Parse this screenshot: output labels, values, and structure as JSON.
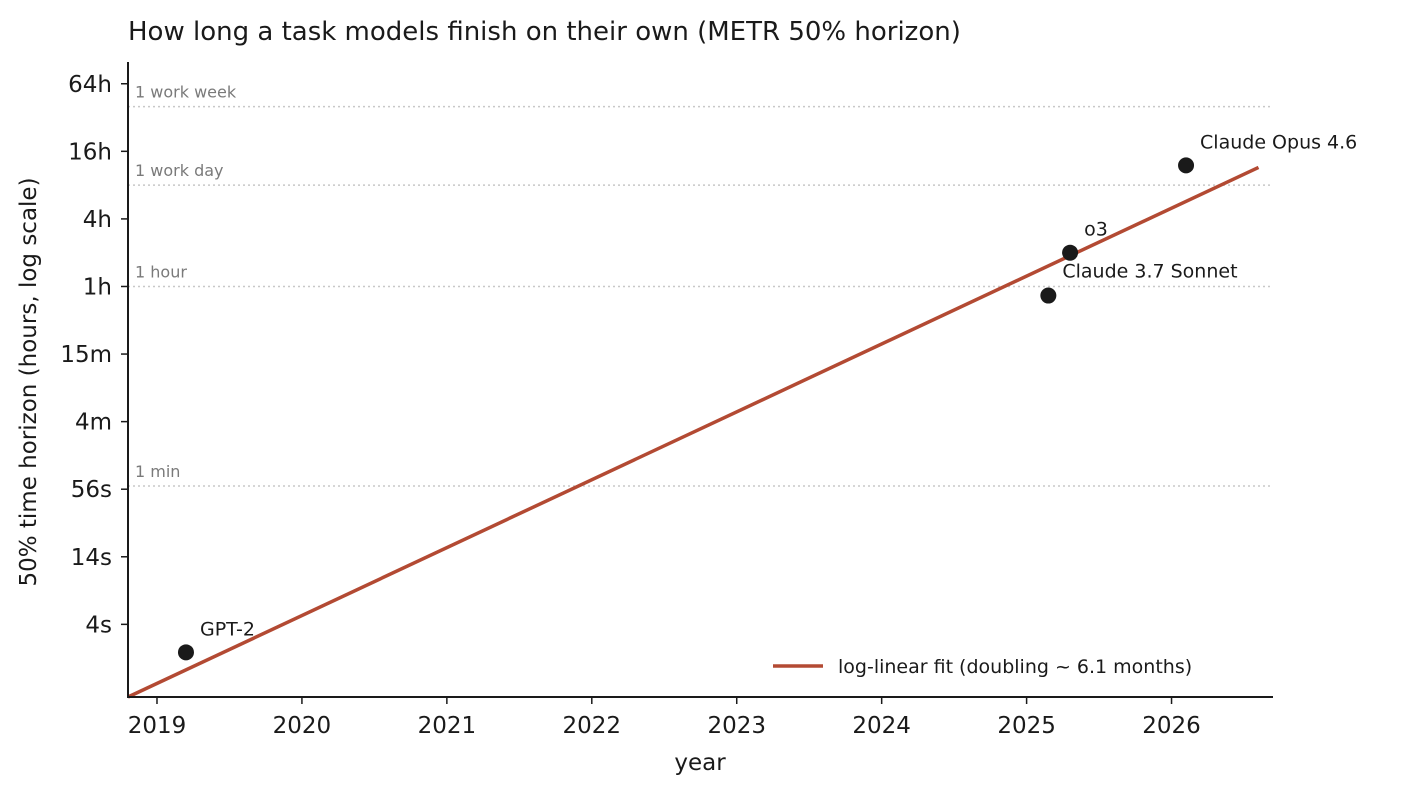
{
  "chart_data": {
    "type": "scatter",
    "title": "How long a task models finish on their own (METR 50% horizon)",
    "xlabel": "year",
    "ylabel": "50% time horizon (hours, log scale)",
    "y_scale": "log2",
    "xlim": [
      2018.8,
      2026.7
    ],
    "ylim_hours": [
      0.00022,
      100
    ],
    "x_ticks": [
      {
        "value": 2019,
        "label": "2019"
      },
      {
        "value": 2020,
        "label": "2020"
      },
      {
        "value": 2021,
        "label": "2021"
      },
      {
        "value": 2022,
        "label": "2022"
      },
      {
        "value": 2023,
        "label": "2023"
      },
      {
        "value": 2024,
        "label": "2024"
      },
      {
        "value": 2025,
        "label": "2025"
      },
      {
        "value": 2026,
        "label": "2026"
      }
    ],
    "y_ticks": [
      {
        "hours": 0.0009766,
        "label": "4s"
      },
      {
        "hours": 0.0039063,
        "label": "14s"
      },
      {
        "hours": 0.015625,
        "label": "56s"
      },
      {
        "hours": 0.0625,
        "label": "4m"
      },
      {
        "hours": 0.25,
        "label": "15m"
      },
      {
        "hours": 1,
        "label": "1h"
      },
      {
        "hours": 4,
        "label": "4h"
      },
      {
        "hours": 16,
        "label": "16h"
      },
      {
        "hours": 64,
        "label": "64h"
      }
    ],
    "reference_lines": [
      {
        "hours": 40,
        "label": "1 work week"
      },
      {
        "hours": 8,
        "label": "1 work day"
      },
      {
        "hours": 1,
        "label": "1 hour"
      },
      {
        "hours": 0.016667,
        "label": "1 min"
      }
    ],
    "points": [
      {
        "name": "GPT-2",
        "x": 2019.2,
        "hours": 0.00055
      },
      {
        "name": "Claude 3.7 Sonnet",
        "x": 2025.15,
        "hours": 0.83
      },
      {
        "name": "o3",
        "x": 2025.3,
        "hours": 2.0
      },
      {
        "name": "Claude Opus 4.6",
        "x": 2026.1,
        "hours": 12.0
      }
    ],
    "fit": {
      "label": "log-linear fit (doubling ~ 6.1 months)",
      "x": [
        2018.8,
        2026.6
      ],
      "hours": [
        0.00022,
        11.5
      ]
    },
    "grid": false,
    "legend_position": "lower-right",
    "colors": {
      "fit_line": "#b34a33",
      "points": "#1a1a1a",
      "reference_lines": "#c8c8c8",
      "axis": "#1a1a1a"
    }
  }
}
